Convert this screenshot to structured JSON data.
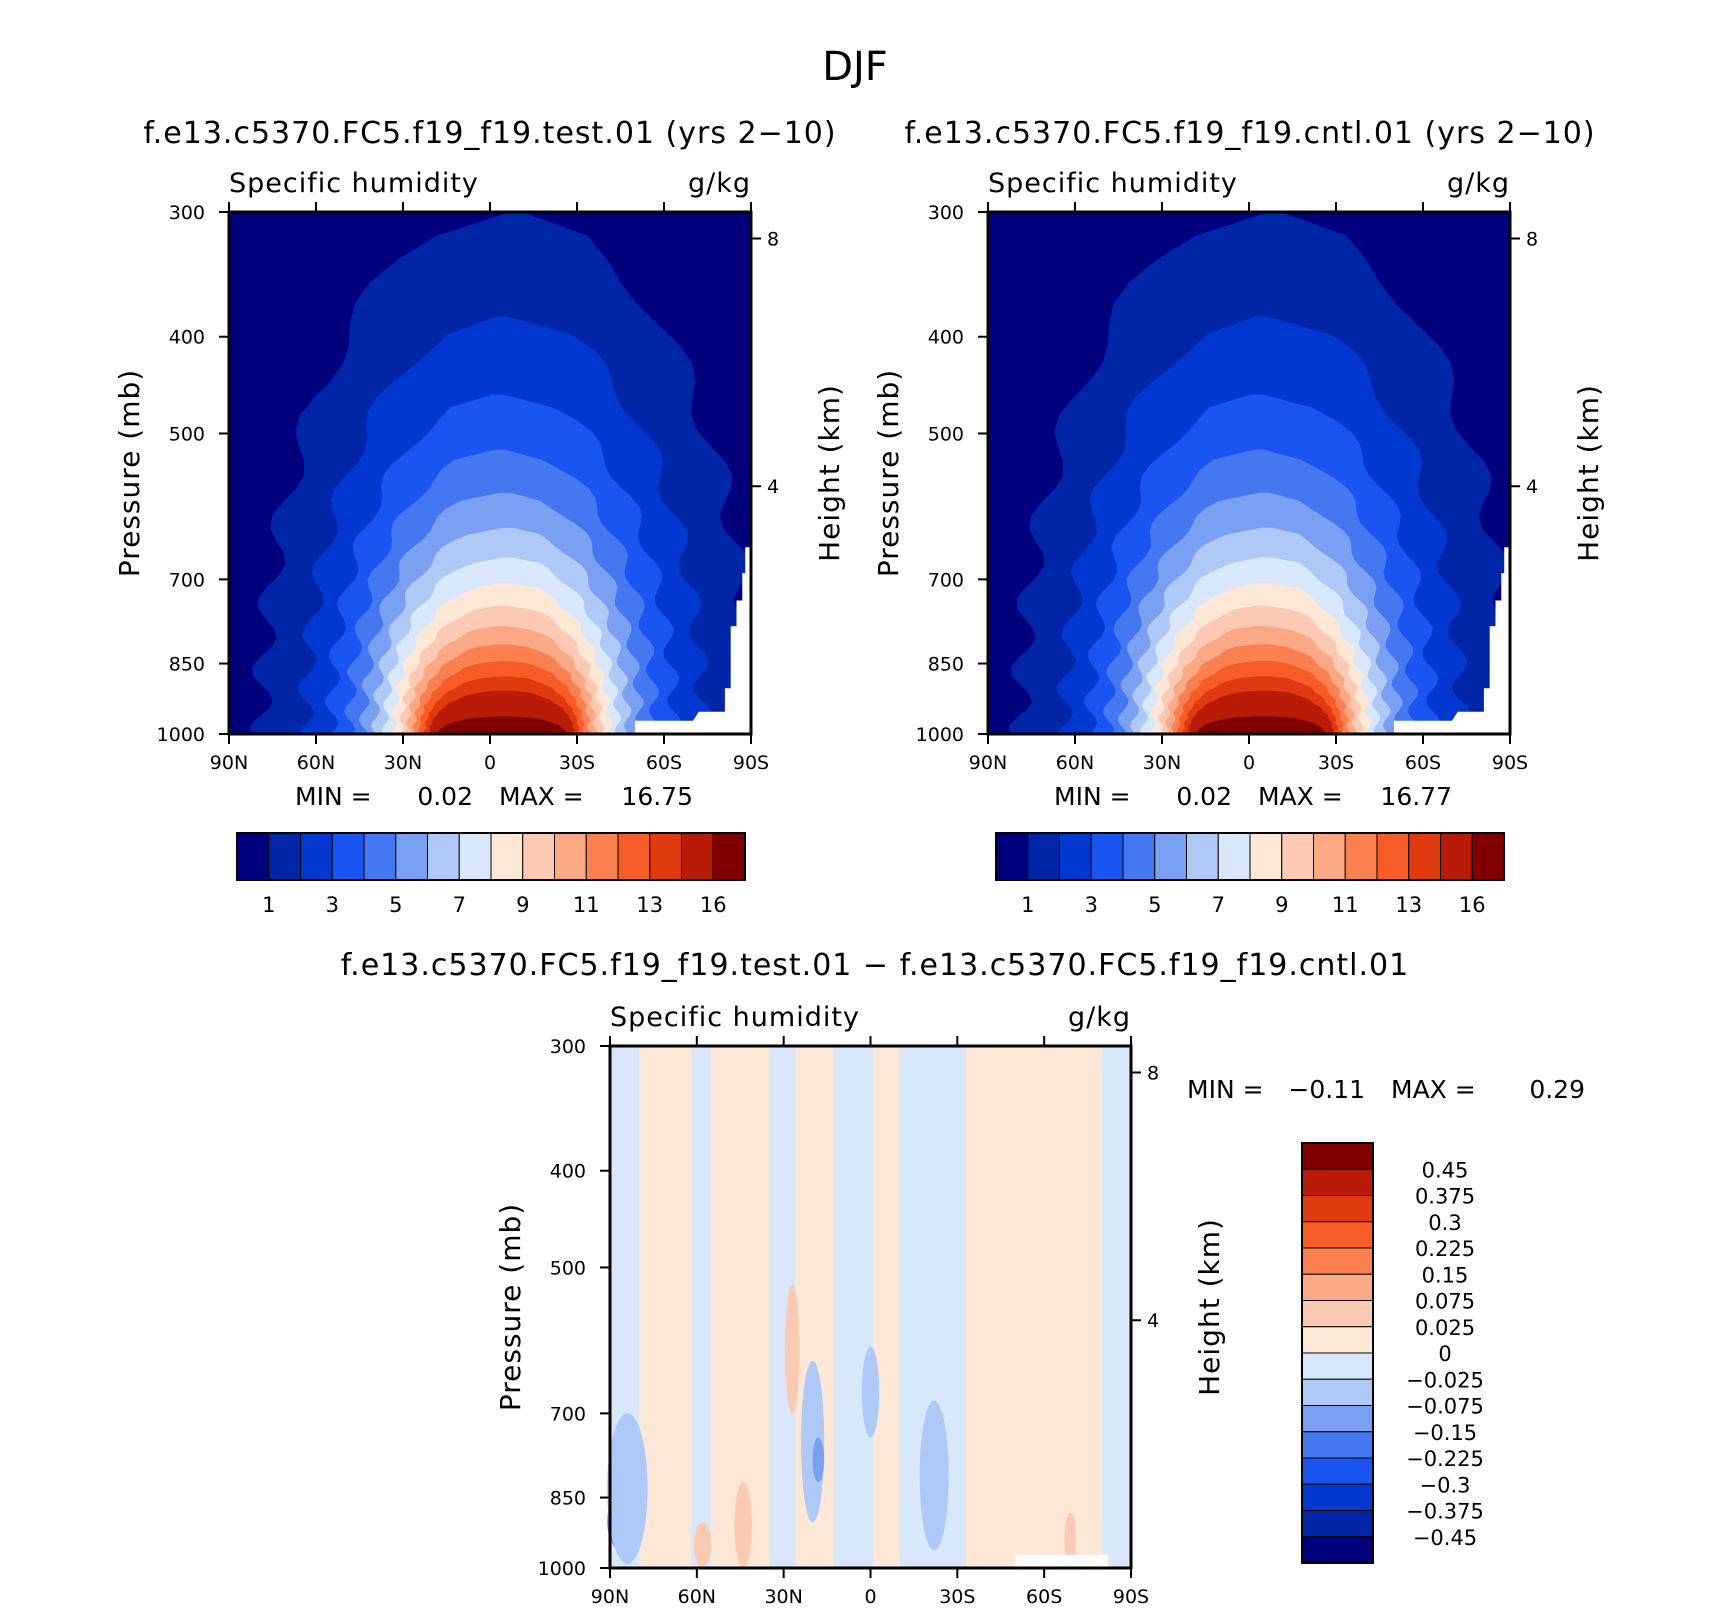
{
  "figure_title": "DJF",
  "panels": [
    {
      "id": "test",
      "title": "f.e13.c5370.FC5.f19_f19.test.01 (yrs 2−10)",
      "variable": "Specific humidity",
      "units": "g/kg",
      "ylabel": "Pressure (mb)",
      "ylabel_right": "Height (km)",
      "min_label": "MIN =",
      "min": "0.02",
      "max_label": "MAX =",
      "max": "16.75"
    },
    {
      "id": "cntl",
      "title": "f.e13.c5370.FC5.f19_f19.cntl.01 (yrs 2−10)",
      "variable": "Specific humidity",
      "units": "g/kg",
      "ylabel": "Pressure (mb)",
      "ylabel_right": "Height (km)",
      "min_label": "MIN =",
      "min": "0.02",
      "max_label": "MAX =",
      "max": "16.77"
    },
    {
      "id": "diff",
      "title": "f.e13.c5370.FC5.f19_f19.test.01 − f.e13.c5370.FC5.f19_f19.cntl.01",
      "variable": "Specific humidity",
      "units": "g/kg",
      "ylabel": "Pressure (mb)",
      "ylabel_right": "Height (km)",
      "min_label": "MIN =",
      "min": "−0.11",
      "max_label": "MAX =",
      "max": "0.29"
    }
  ],
  "chart_data": [
    {
      "type": "heatmap",
      "title": "f.e13.c5370.FC5.f19_f19.test.01 (yrs 2−10)",
      "variable": "Specific humidity",
      "units": "g/kg",
      "x_ticks": [
        "90N",
        "60N",
        "30N",
        "0",
        "30S",
        "60S",
        "90S"
      ],
      "x_values": [
        90,
        60,
        30,
        0,
        -30,
        -60,
        -90
      ],
      "y_ticks": [
        "300",
        "400",
        "500",
        "700",
        "850",
        "1000"
      ],
      "y_values": [
        300,
        400,
        500,
        700,
        850,
        1000
      ],
      "ylim": [
        1000,
        300
      ],
      "right_ticks": [
        "8",
        "4"
      ],
      "right_values": [
        8,
        4
      ],
      "y_scale": "log-pressure",
      "contour_levels": [
        1,
        2,
        3,
        4,
        5,
        6,
        7,
        8,
        9,
        10,
        11,
        12,
        13,
        14,
        16
      ],
      "colorbar_labels": [
        "1",
        "3",
        "5",
        "7",
        "9",
        "11",
        "13",
        "16"
      ],
      "colors": [
        "#00007e",
        "#0025a6",
        "#0038d0",
        "#1a55f2",
        "#4378f0",
        "#7aa0f2",
        "#aec9f6",
        "#d8e8fa",
        "#fde8d8",
        "#fccab2",
        "#fba884",
        "#fa8050",
        "#f65c25",
        "#e03a10",
        "#b81c06",
        "#800000"
      ],
      "peak_location": {
        "lat": -5,
        "pressure": 1000
      },
      "peak_value": 16.75
    },
    {
      "type": "heatmap",
      "title": "f.e13.c5370.FC5.f19_f19.cntl.01 (yrs 2−10)",
      "variable": "Specific humidity",
      "units": "g/kg",
      "x_ticks": [
        "90N",
        "60N",
        "30N",
        "0",
        "30S",
        "60S",
        "90S"
      ],
      "x_values": [
        90,
        60,
        30,
        0,
        -30,
        -60,
        -90
      ],
      "y_ticks": [
        "300",
        "400",
        "500",
        "700",
        "850",
        "1000"
      ],
      "y_values": [
        300,
        400,
        500,
        700,
        850,
        1000
      ],
      "ylim": [
        1000,
        300
      ],
      "right_ticks": [
        "8",
        "4"
      ],
      "right_values": [
        8,
        4
      ],
      "y_scale": "log-pressure",
      "contour_levels": [
        1,
        2,
        3,
        4,
        5,
        6,
        7,
        8,
        9,
        10,
        11,
        12,
        13,
        14,
        16
      ],
      "colorbar_labels": [
        "1",
        "3",
        "5",
        "7",
        "9",
        "11",
        "13",
        "16"
      ],
      "colors": [
        "#00007e",
        "#0025a6",
        "#0038d0",
        "#1a55f2",
        "#4378f0",
        "#7aa0f2",
        "#aec9f6",
        "#d8e8fa",
        "#fde8d8",
        "#fccab2",
        "#fba884",
        "#fa8050",
        "#f65c25",
        "#e03a10",
        "#b81c06",
        "#800000"
      ],
      "peak_location": {
        "lat": -5,
        "pressure": 1000
      },
      "peak_value": 16.77
    },
    {
      "type": "heatmap",
      "title": "f.e13.c5370.FC5.f19_f19.test.01 − f.e13.c5370.FC5.f19_f19.cntl.01",
      "variable": "Specific humidity",
      "units": "g/kg",
      "x_ticks": [
        "90N",
        "60N",
        "30N",
        "0",
        "30S",
        "60S",
        "90S"
      ],
      "x_values": [
        90,
        60,
        30,
        0,
        -30,
        -60,
        -90
      ],
      "y_ticks": [
        "300",
        "400",
        "500",
        "700",
        "850",
        "1000"
      ],
      "y_values": [
        300,
        400,
        500,
        700,
        850,
        1000
      ],
      "ylim": [
        1000,
        300
      ],
      "right_ticks": [
        "8",
        "4"
      ],
      "right_values": [
        8,
        4
      ],
      "y_scale": "log-pressure",
      "colorbar_labels": [
        "0.45",
        "0.375",
        "0.3",
        "0.225",
        "0.15",
        "0.075",
        "0.025",
        "0",
        "−0.025",
        "−0.075",
        "−0.15",
        "−0.225",
        "−0.3",
        "−0.375",
        "−0.45"
      ],
      "colors_top_to_bottom": [
        "#800000",
        "#b81c06",
        "#e03a10",
        "#f65c25",
        "#fa8050",
        "#fba884",
        "#fccab2",
        "#fde8d8",
        "#d8e8fa",
        "#aec9f6",
        "#7aa0f2",
        "#4378f0",
        "#1a55f2",
        "#0038d0",
        "#0025a6",
        "#00007e"
      ],
      "lat_bands": [
        {
          "lat_from": 90,
          "lat_to": 80,
          "value": -0.02
        },
        {
          "lat_from": 80,
          "lat_to": 62,
          "value": 0.02
        },
        {
          "lat_from": 62,
          "lat_to": 55,
          "value": -0.02
        },
        {
          "lat_from": 55,
          "lat_to": 35,
          "value": 0.02
        },
        {
          "lat_from": 35,
          "lat_to": 26,
          "value": -0.02
        },
        {
          "lat_from": 26,
          "lat_to": 13,
          "value": 0.02
        },
        {
          "lat_from": 13,
          "lat_to": -1,
          "value": -0.02
        },
        {
          "lat_from": -1,
          "lat_to": -10,
          "value": 0.02
        },
        {
          "lat_from": -10,
          "lat_to": -33,
          "value": -0.02
        },
        {
          "lat_from": -33,
          "lat_to": -55,
          "value": 0.02
        },
        {
          "lat_from": -55,
          "lat_to": -80,
          "value": 0.02
        },
        {
          "lat_from": -80,
          "lat_to": -90,
          "value": -0.02
        }
      ],
      "min": -0.11,
      "max": 0.29
    }
  ]
}
